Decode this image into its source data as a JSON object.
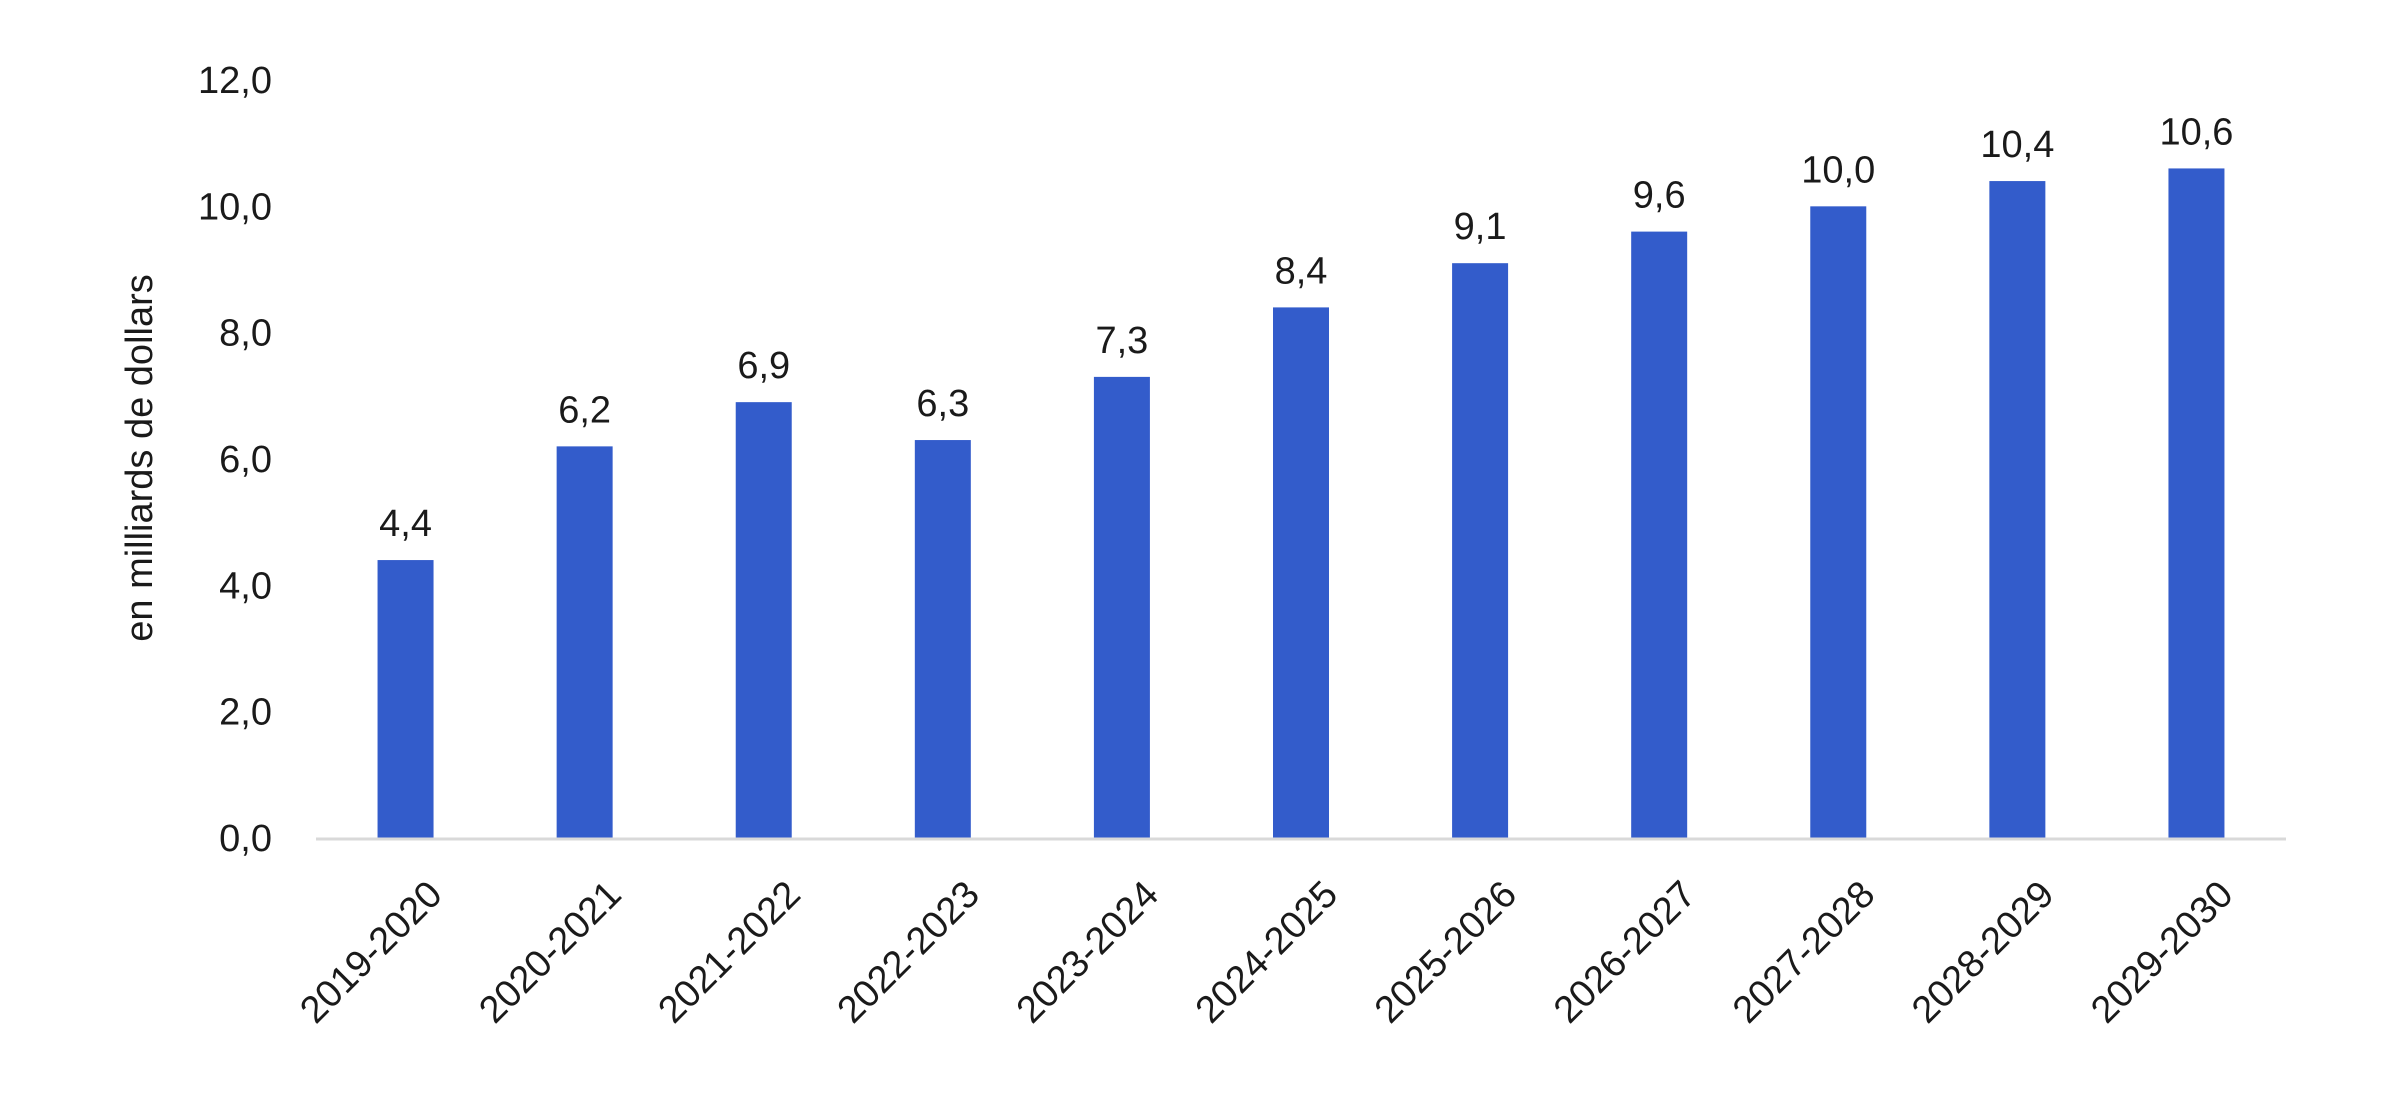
{
  "chart_data": {
    "type": "bar",
    "title": "",
    "xlabel": "",
    "ylabel": "en milliards de dollars",
    "categories": [
      "2019-2020",
      "2020-2021",
      "2021-2022",
      "2022-2023",
      "2023-2024",
      "2024-2025",
      "2025-2026",
      "2026-2027",
      "2027-2028",
      "2028-2029",
      "2029-2030"
    ],
    "values": [
      4.4,
      6.2,
      6.9,
      6.3,
      7.3,
      8.4,
      9.1,
      9.6,
      10.0,
      10.4,
      10.6
    ],
    "value_labels": [
      "4,4",
      "6,2",
      "6,9",
      "6,3",
      "7,3",
      "8,4",
      "9,1",
      "9,6",
      "10,0",
      "10,4",
      "10,6"
    ],
    "yticks": [
      0,
      2,
      4,
      6,
      8,
      10,
      12
    ],
    "ytick_labels": [
      "0,0",
      "2,0",
      "4,0",
      "6,0",
      "8,0",
      "10,0",
      "12,0"
    ],
    "ylim": [
      0,
      12
    ],
    "grid": false,
    "legend": "none",
    "bar_color": "#335CCB",
    "axis_color": "#d9d9d9"
  }
}
